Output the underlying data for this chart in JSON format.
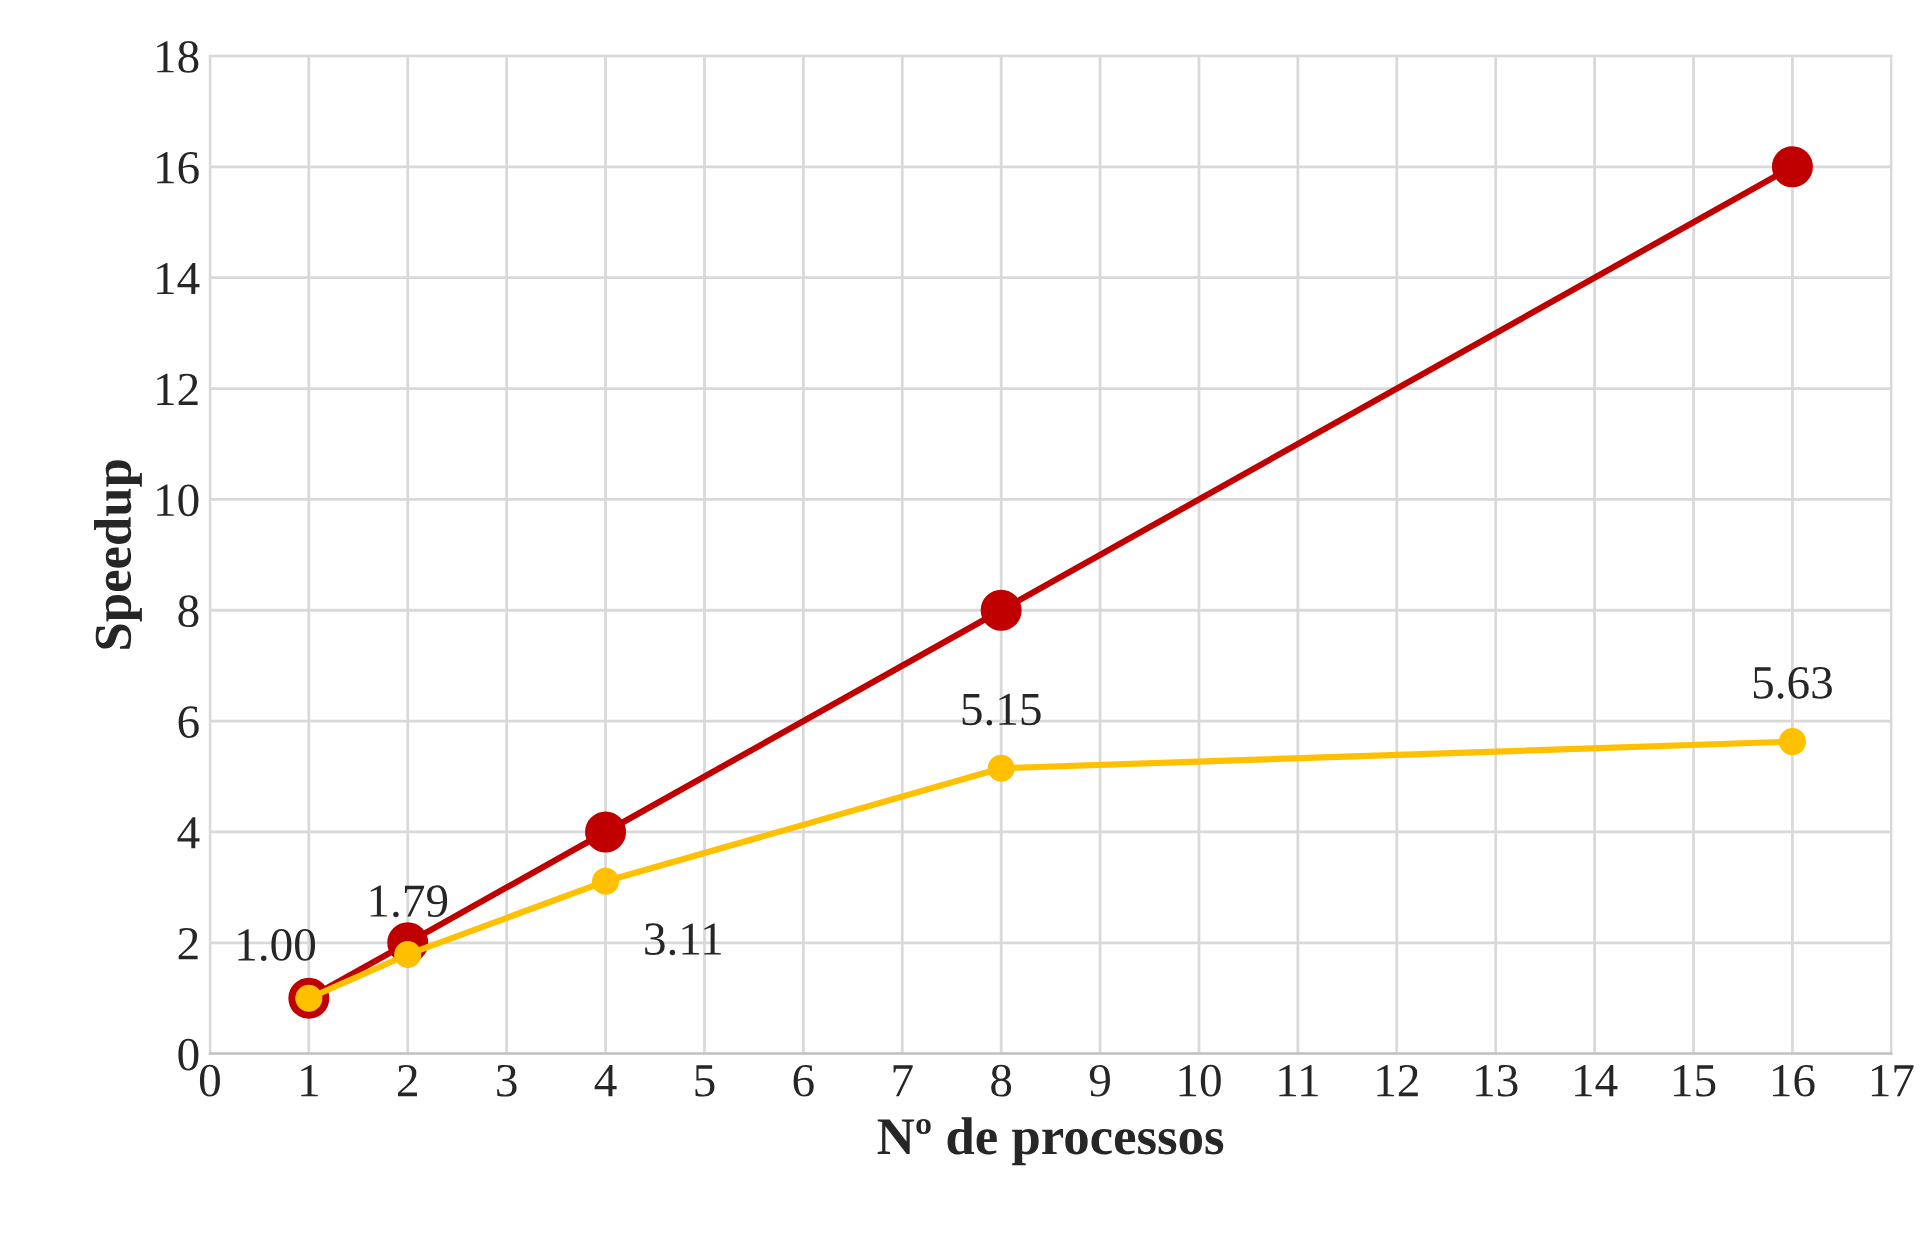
{
  "chart_data": {
    "type": "line",
    "xlabel": "Nº de processos",
    "ylabel": "Speedup",
    "x": [
      1,
      2,
      4,
      8,
      16
    ],
    "series": [
      {
        "color": "#c00000",
        "values": [
          1,
          2,
          4,
          8,
          16
        ]
      },
      {
        "color": "#ffc000",
        "values": [
          1.0,
          1.79,
          3.11,
          5.15,
          5.63
        ],
        "value_labels": [
          "1.00",
          "1.79",
          "3.11",
          "5.15",
          "5.63"
        ]
      }
    ],
    "xlim": [
      0,
      17
    ],
    "xticks": [
      0,
      1,
      2,
      3,
      4,
      5,
      6,
      7,
      8,
      9,
      10,
      11,
      12,
      13,
      14,
      15,
      16,
      17
    ],
    "ylim": [
      0,
      18
    ],
    "yticks": [
      0,
      2,
      4,
      6,
      8,
      10,
      12,
      14,
      16,
      18
    ],
    "grid": true,
    "marker": "circle",
    "line_style": "solid"
  }
}
